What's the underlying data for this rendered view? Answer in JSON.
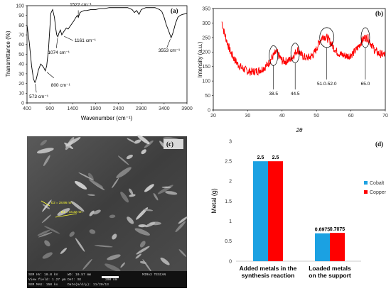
{
  "chart_data": [
    {
      "panel": "(a)",
      "type": "line",
      "xlabel": "Wavenumber (cm⁻¹)",
      "ylabel": "Transmittance (%)",
      "xlim": [
        400,
        3900
      ],
      "ylim": [
        0,
        100
      ],
      "xticks": [
        400,
        900,
        1400,
        1900,
        2400,
        2900,
        3400,
        3900
      ],
      "yticks": [
        0,
        10,
        20,
        30,
        40,
        50,
        60,
        70,
        80,
        90,
        100
      ],
      "series": [
        {
          "x": [
            400,
            450,
            500,
            540,
            573,
            600,
            650,
            700,
            740,
            770,
            800,
            830,
            870,
            920,
            960,
            1000,
            1030,
            1050,
            1074,
            1100,
            1130,
            1161,
            1200,
            1260,
            1300,
            1360,
            1420,
            1470,
            1500,
            1522,
            1560,
            1600,
            1650,
            1700,
            1800,
            1900,
            2000,
            2100,
            2200,
            2300,
            2400,
            2500,
            2600,
            2700,
            2750,
            2800,
            2850,
            2900,
            2950,
            3000,
            3050,
            3100,
            3150,
            3200,
            3250,
            3300,
            3350,
            3400,
            3450,
            3500,
            3553,
            3600,
            3650,
            3700,
            3750,
            3800,
            3900
          ],
          "y": [
            80,
            62,
            38,
            25,
            21,
            24,
            34,
            40,
            38,
            36,
            33,
            38,
            55,
            92,
            96,
            88,
            76,
            70,
            68,
            72,
            75,
            70,
            73,
            77,
            76,
            80,
            84,
            88,
            90,
            88,
            93,
            94,
            95,
            95,
            96,
            96,
            97,
            97,
            98,
            98,
            98,
            98,
            98,
            96,
            93,
            95,
            91,
            96,
            97,
            98,
            98,
            98,
            98,
            98,
            97,
            96,
            94,
            88,
            80,
            74,
            67,
            73,
            82,
            88,
            90,
            91,
            92
          ]
        }
      ],
      "annotations": [
        {
          "text": "573 cm⁻¹",
          "x": 573,
          "y": 21
        },
        {
          "text": "800 cm⁻¹",
          "x": 800,
          "y": 33
        },
        {
          "text": "1074 cm⁻¹",
          "x": 1074,
          "y": 68
        },
        {
          "text": "1161 cm⁻¹",
          "x": 1161,
          "y": 70
        },
        {
          "text": "1522 cm⁻¹",
          "x": 1522,
          "y": 88
        },
        {
          "text": "3553 cm⁻¹",
          "x": 3553,
          "y": 67
        }
      ]
    },
    {
      "panel": "(b)",
      "type": "line",
      "xlabel": "2θ",
      "ylabel": "Intensity (a.u.)",
      "xlim": [
        20,
        70
      ],
      "ylim": [
        0,
        350
      ],
      "xticks": [
        20,
        30,
        40,
        50,
        60,
        70
      ],
      "yticks": [
        0,
        50,
        100,
        150,
        200,
        250,
        300,
        350
      ],
      "series": [
        {
          "x": [
            22.5,
            23,
            24,
            25,
            26,
            27,
            28,
            29,
            30,
            31,
            32,
            33,
            34,
            35,
            36,
            37,
            38,
            38.5,
            39,
            40,
            41,
            42,
            43,
            44,
            44.5,
            45,
            46,
            47,
            48,
            49,
            50,
            51,
            52,
            53,
            54,
            55,
            56,
            57,
            58,
            59,
            60,
            61,
            62,
            63,
            64,
            65,
            66,
            67,
            68,
            69,
            70
          ],
          "y": [
            305,
            275,
            235,
            200,
            178,
            160,
            148,
            140,
            134,
            132,
            133,
            135,
            140,
            148,
            160,
            180,
            195,
            200,
            188,
            170,
            168,
            172,
            182,
            200,
            208,
            200,
            185,
            180,
            182,
            190,
            210,
            240,
            255,
            250,
            235,
            215,
            200,
            192,
            188,
            186,
            190,
            200,
            215,
            235,
            250,
            248,
            225,
            205,
            195,
            192,
            190
          ]
        }
      ],
      "annotations": [
        {
          "text": "38.5",
          "x": 37.5
        },
        {
          "text": "44.5",
          "x": 43.8
        },
        {
          "text": "51.0-52.0",
          "x": 53.0
        },
        {
          "text": "65.0",
          "x": 64.2
        }
      ]
    },
    {
      "panel": "(d)",
      "type": "bar",
      "ylabel": "Metal (g)",
      "ylim": [
        0,
        3
      ],
      "yticks": [
        0,
        0.5,
        1,
        1.5,
        2,
        2.5,
        3
      ],
      "categories": [
        "Added metals in the synthesis reaction",
        "Loaded metals on the support"
      ],
      "category_lines": [
        [
          "Added metals in the",
          "synthesis reaction"
        ],
        [
          "Loaded metals",
          "on the support"
        ]
      ],
      "series": [
        {
          "name": "Cobalt",
          "color": "#1ba1e2",
          "values": [
            2.5,
            0.6975
          ],
          "labels": [
            "2.5",
            "0.6975"
          ]
        },
        {
          "name": "Copper",
          "color": "#ff0000",
          "values": [
            2.5,
            0.7075
          ],
          "labels": [
            "2.5",
            "0.7075"
          ]
        }
      ],
      "legend": "right"
    }
  ],
  "sem": {
    "panel": "(c)",
    "meas1": "D2 = 28.96 nm",
    "meas2": "D1 = 44.32 nm",
    "info": [
      [
        "SEM HV: 10.0 kV",
        "WD: 10.57 mm",
        "MIRA3 TESCAN"
      ],
      [
        "View field: 1.27 µm",
        "Det: SE",
        "200 nm"
      ],
      [
        "SEM MAG: 150 kx",
        "Date(m/d/y): 11/20/13",
        ""
      ]
    ]
  }
}
